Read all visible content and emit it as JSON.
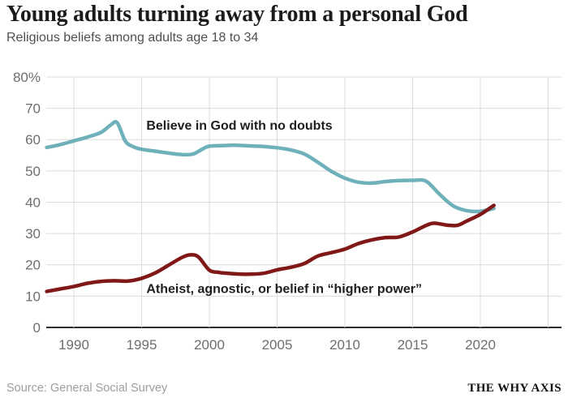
{
  "header": {
    "title": "Young adults turning away from a personal God",
    "subtitle": "Religious beliefs among adults age 18 to 34"
  },
  "footer": {
    "source": "Source: General Social Survey",
    "brand": "THE WHY AXIS"
  },
  "palette": {
    "believe_line": "#6fb1ba",
    "atheist_line": "#801818",
    "grid": "#dcdcdc",
    "axis": "#2e2e2e",
    "tick_text": "#6e6e6e",
    "annotation_text": "#1e1e1e"
  },
  "chart_data": {
    "type": "line",
    "title": "Young adults turning away from a personal God",
    "subtitle": "Religious beliefs among adults age 18 to 34",
    "xlabel": "",
    "ylabel": "",
    "x_range": [
      1988,
      2026
    ],
    "ylim": [
      0,
      80
    ],
    "grid": true,
    "legend_position": "inline-annotations",
    "x_ticks": [
      1990,
      1995,
      2000,
      2005,
      2010,
      2015,
      2020
    ],
    "x_grid_years": [
      1990,
      1995,
      2000,
      2005,
      2010,
      2015,
      2020,
      2025
    ],
    "y_ticks": [
      0,
      10,
      20,
      30,
      40,
      50,
      60,
      70,
      80
    ],
    "y_tick_labels": [
      "0",
      "10",
      "20",
      "30",
      "40",
      "50",
      "60",
      "70",
      "80%"
    ],
    "annotations": [
      {
        "id": "believe",
        "text": "Believe in God with no doubts",
        "x": 1995.35,
        "y": 63.2
      },
      {
        "id": "atheist",
        "text": "Atheist, agnostic, or belief in “higher power”",
        "x": 1995.35,
        "y": 11.0
      }
    ],
    "series": [
      {
        "id": "believe",
        "name": "Believe in God with no doubts",
        "color": "#6fb1ba",
        "points": [
          [
            1988,
            57.5
          ],
          [
            1989,
            58.4
          ],
          [
            1990,
            59.6
          ],
          [
            1991,
            60.8
          ],
          [
            1992,
            62.3
          ],
          [
            1992.7,
            64.6
          ],
          [
            1993.2,
            65.4
          ],
          [
            1993.8,
            59.5
          ],
          [
            1994.4,
            57.7
          ],
          [
            1995,
            56.9
          ],
          [
            1996,
            56.3
          ],
          [
            1997,
            55.7
          ],
          [
            1998,
            55.2
          ],
          [
            1998.8,
            55.4
          ],
          [
            1999.5,
            57.0
          ],
          [
            2000,
            57.9
          ],
          [
            2001,
            58.1
          ],
          [
            2002,
            58.2
          ],
          [
            2003,
            58.0
          ],
          [
            2004,
            57.8
          ],
          [
            2005,
            57.4
          ],
          [
            2006,
            56.7
          ],
          [
            2007,
            55.4
          ],
          [
            2008,
            52.8
          ],
          [
            2009,
            49.9
          ],
          [
            2010,
            47.7
          ],
          [
            2011,
            46.4
          ],
          [
            2012,
            46.1
          ],
          [
            2013,
            46.6
          ],
          [
            2014,
            46.9
          ],
          [
            2015,
            47.0
          ],
          [
            2016,
            46.7
          ],
          [
            2017,
            42.5
          ],
          [
            2018,
            38.8
          ],
          [
            2019,
            37.3
          ],
          [
            2020,
            37.1
          ],
          [
            2021,
            38.0
          ]
        ]
      },
      {
        "id": "atheist",
        "name": "Atheist, agnostic, or belief in “higher power”",
        "color": "#801818",
        "points": [
          [
            1988,
            11.5
          ],
          [
            1989,
            12.3
          ],
          [
            1990,
            13.1
          ],
          [
            1991,
            14.1
          ],
          [
            1992,
            14.7
          ],
          [
            1993,
            14.9
          ],
          [
            1994,
            14.8
          ],
          [
            1995,
            15.7
          ],
          [
            1996,
            17.4
          ],
          [
            1997,
            19.9
          ],
          [
            1998,
            22.4
          ],
          [
            1998.6,
            23.2
          ],
          [
            1999.2,
            22.5
          ],
          [
            2000,
            18.3
          ],
          [
            2000.7,
            17.6
          ],
          [
            2001,
            17.4
          ],
          [
            2002,
            17.1
          ],
          [
            2003,
            17.0
          ],
          [
            2004,
            17.3
          ],
          [
            2005,
            18.4
          ],
          [
            2006,
            19.2
          ],
          [
            2007,
            20.4
          ],
          [
            2008,
            22.8
          ],
          [
            2009,
            23.9
          ],
          [
            2010,
            25.0
          ],
          [
            2011,
            26.8
          ],
          [
            2012,
            28.0
          ],
          [
            2013,
            28.7
          ],
          [
            2014,
            28.9
          ],
          [
            2015,
            30.5
          ],
          [
            2016,
            32.6
          ],
          [
            2016.6,
            33.3
          ],
          [
            2017.5,
            32.7
          ],
          [
            2018.3,
            32.6
          ],
          [
            2019,
            34.0
          ],
          [
            2020,
            36.1
          ],
          [
            2021,
            39.0
          ]
        ]
      }
    ]
  }
}
